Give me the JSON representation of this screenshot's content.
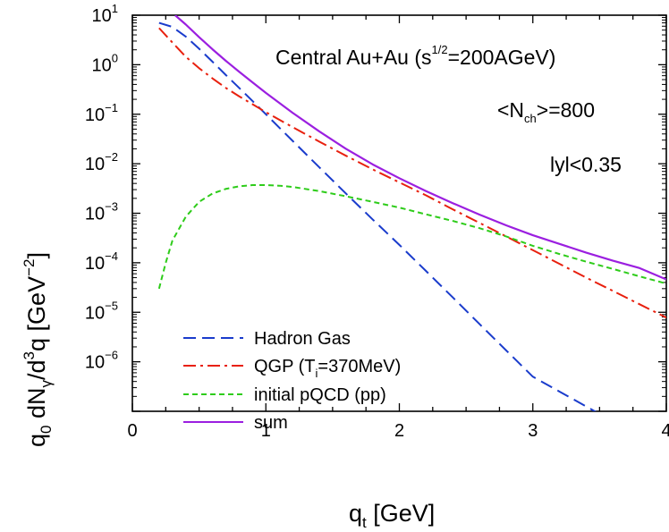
{
  "chart_data": {
    "type": "line",
    "y_scale": "log",
    "xlim": [
      0,
      4
    ],
    "ylim": [
      1e-07,
      10
    ],
    "x_ticks": [
      "0",
      "1",
      "2",
      "3",
      "4"
    ],
    "y_ticks": [
      {
        "value": 10,
        "base": "10",
        "exp": "1"
      },
      {
        "value": 1,
        "base": "10",
        "exp": "0"
      },
      {
        "value": 0.1,
        "base": "10",
        "exp": "−1"
      },
      {
        "value": 0.01,
        "base": "10",
        "exp": "−2"
      },
      {
        "value": 0.001,
        "base": "10",
        "exp": "−3"
      },
      {
        "value": 0.0001,
        "base": "10",
        "exp": "−4"
      },
      {
        "value": 1e-05,
        "base": "10",
        "exp": "−5"
      },
      {
        "value": 1e-06,
        "base": "10",
        "exp": "−6"
      }
    ],
    "xlabel": {
      "main": "q",
      "sub": "t",
      "rest": " [GeV]"
    },
    "ylabel": {
      "p1": "q",
      "s1": "0",
      "p2": " dN",
      "s2": "γ",
      "p3": "/d",
      "e3": "3",
      "p4": "q  [GeV",
      "e4": "−2",
      "p5": "]"
    },
    "annotations": {
      "title": {
        "main": "Central Au+Au (s",
        "sup": "1/2",
        "rest": "=200AGeV)"
      },
      "nch": {
        "pre": "<N",
        "sub": "ch",
        "post": ">=800"
      },
      "rapidity": "lyl<0.35"
    },
    "series": [
      {
        "name": "Hadron Gas",
        "color": "#1a3ccc",
        "dash": "14,7",
        "points": [
          [
            0.2,
            7.0
          ],
          [
            0.3,
            5.8
          ],
          [
            0.4,
            3.7
          ],
          [
            0.5,
            2.1
          ],
          [
            0.6,
            1.15
          ],
          [
            0.7,
            0.62
          ],
          [
            0.8,
            0.34
          ],
          [
            0.9,
            0.185
          ],
          [
            1.0,
            0.1
          ],
          [
            1.2,
            0.029
          ],
          [
            1.4,
            0.0085
          ],
          [
            1.6,
            0.0025
          ],
          [
            1.8,
            0.00075
          ],
          [
            2.0,
            0.00023
          ],
          [
            2.2,
            6.8e-05
          ],
          [
            2.4,
            2e-05
          ],
          [
            2.6,
            5.8e-06
          ],
          [
            2.8,
            1.7e-06
          ],
          [
            3.0,
            5e-07
          ],
          [
            3.2,
            2.5e-07
          ],
          [
            3.4,
            1.25e-07
          ],
          [
            3.6,
            6.2e-08
          ]
        ]
      },
      {
        "name": "QGP",
        "legend": {
          "pre": "QGP (T",
          "sub": "i",
          "post": "=370MeV)"
        },
        "color": "#e8200e",
        "dash": "14,5,3,5",
        "points": [
          [
            0.2,
            5.5
          ],
          [
            0.3,
            2.8
          ],
          [
            0.4,
            1.45
          ],
          [
            0.5,
            0.85
          ],
          [
            0.6,
            0.53
          ],
          [
            0.7,
            0.34
          ],
          [
            0.8,
            0.23
          ],
          [
            1.0,
            0.11
          ],
          [
            1.2,
            0.055
          ],
          [
            1.4,
            0.028
          ],
          [
            1.6,
            0.0145
          ],
          [
            1.8,
            0.0077
          ],
          [
            2.0,
            0.0042
          ],
          [
            2.2,
            0.0023
          ],
          [
            2.4,
            0.0012
          ],
          [
            2.6,
            0.00064
          ],
          [
            2.8,
            0.00034
          ],
          [
            3.0,
            0.00018
          ],
          [
            3.2,
            9.5e-05
          ],
          [
            3.4,
            5e-05
          ],
          [
            3.6,
            2.7e-05
          ],
          [
            3.8,
            1.45e-05
          ],
          [
            4.0,
            7.8e-06
          ]
        ]
      },
      {
        "name": "initial pQCD (pp)",
        "color": "#2ecc1a",
        "dash": "6,4",
        "points": [
          [
            0.2,
            3e-05
          ],
          [
            0.25,
            0.0001
          ],
          [
            0.3,
            0.00028
          ],
          [
            0.4,
            0.00085
          ],
          [
            0.5,
            0.0017
          ],
          [
            0.6,
            0.0025
          ],
          [
            0.7,
            0.0031
          ],
          [
            0.8,
            0.0035
          ],
          [
            0.9,
            0.0037
          ],
          [
            1.0,
            0.0037
          ],
          [
            1.1,
            0.0036
          ],
          [
            1.2,
            0.0034
          ],
          [
            1.4,
            0.0028
          ],
          [
            1.6,
            0.0022
          ],
          [
            1.8,
            0.0017
          ],
          [
            2.0,
            0.0013
          ],
          [
            2.2,
            0.00095
          ],
          [
            2.4,
            0.0007
          ],
          [
            2.6,
            0.0005
          ],
          [
            2.8,
            0.00034
          ],
          [
            3.0,
            0.00022
          ],
          [
            3.2,
            0.00015
          ],
          [
            3.4,
            0.000105
          ],
          [
            3.6,
            7.5e-05
          ],
          [
            3.8,
            5.3e-05
          ],
          [
            4.0,
            3.8e-05
          ]
        ]
      },
      {
        "name": "sum",
        "color": "#9b1fe0",
        "dash": "",
        "points": [
          [
            0.32,
            10.0
          ],
          [
            0.4,
            6.5
          ],
          [
            0.5,
            3.6
          ],
          [
            0.6,
            2.05
          ],
          [
            0.7,
            1.2
          ],
          [
            0.8,
            0.72
          ],
          [
            0.9,
            0.44
          ],
          [
            1.0,
            0.27
          ],
          [
            1.2,
            0.107
          ],
          [
            1.4,
            0.045
          ],
          [
            1.6,
            0.02
          ],
          [
            1.8,
            0.0097
          ],
          [
            2.0,
            0.0051
          ],
          [
            2.2,
            0.0028
          ],
          [
            2.4,
            0.0016
          ],
          [
            2.6,
            0.00094
          ],
          [
            2.8,
            0.00057
          ],
          [
            3.0,
            0.00036
          ],
          [
            3.2,
            0.00024
          ],
          [
            3.4,
            0.00016
          ],
          [
            3.6,
            0.00011
          ],
          [
            3.8,
            7.8e-05
          ],
          [
            4.0,
            4.6e-05
          ]
        ]
      }
    ]
  }
}
